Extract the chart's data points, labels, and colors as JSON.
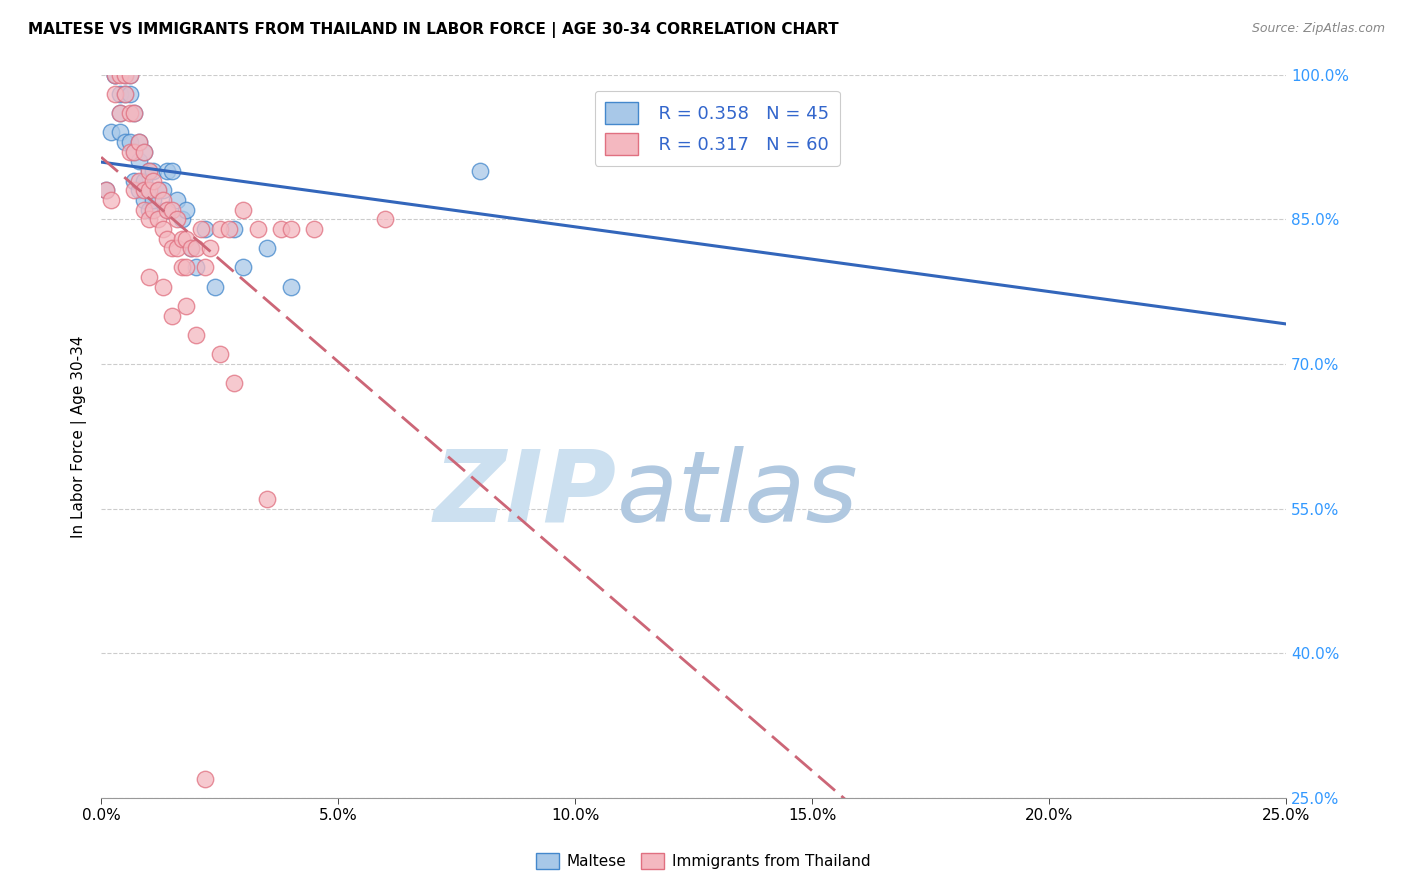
{
  "title": "MALTESE VS IMMIGRANTS FROM THAILAND IN LABOR FORCE | AGE 30-34 CORRELATION CHART",
  "source": "Source: ZipAtlas.com",
  "ylabel": "In Labor Force | Age 30-34",
  "xlim": [
    0.0,
    0.25
  ],
  "ylim": [
    0.25,
    1.0
  ],
  "xticks": [
    0.0,
    0.05,
    0.1,
    0.15,
    0.2,
    0.25
  ],
  "xtick_labels": [
    "0.0%",
    "5.0%",
    "10.0%",
    "15.0%",
    "20.0%",
    "25.0%"
  ],
  "yticks": [
    0.25,
    0.4,
    0.55,
    0.7,
    0.85,
    1.0
  ],
  "ytick_labels": [
    "25.0%",
    "40.0%",
    "55.0%",
    "70.0%",
    "85.0%",
    "100.0%"
  ],
  "blue_scatter_color": "#a8c8e8",
  "blue_edge_color": "#4488cc",
  "pink_scatter_color": "#f4b8c0",
  "pink_edge_color": "#e07080",
  "line_blue_color": "#3366bb",
  "line_pink_color": "#cc6677",
  "R_blue": 0.358,
  "N_blue": 45,
  "R_pink": 0.317,
  "N_pink": 60,
  "legend_blue": "Maltese",
  "legend_pink": "Immigrants from Thailand",
  "blue_x": [
    0.001,
    0.002,
    0.003,
    0.003,
    0.004,
    0.004,
    0.004,
    0.005,
    0.005,
    0.005,
    0.006,
    0.006,
    0.006,
    0.007,
    0.007,
    0.007,
    0.008,
    0.008,
    0.008,
    0.009,
    0.009,
    0.009,
    0.01,
    0.01,
    0.01,
    0.011,
    0.011,
    0.012,
    0.013,
    0.014,
    0.014,
    0.015,
    0.016,
    0.017,
    0.018,
    0.019,
    0.02,
    0.022,
    0.024,
    0.028,
    0.03,
    0.035,
    0.04,
    0.08,
    0.115
  ],
  "blue_y": [
    0.88,
    0.94,
    1.0,
    1.0,
    0.98,
    0.96,
    0.94,
    1.0,
    0.98,
    0.93,
    1.0,
    0.98,
    0.93,
    0.96,
    0.92,
    0.89,
    0.93,
    0.91,
    0.88,
    0.92,
    0.89,
    0.87,
    0.9,
    0.88,
    0.86,
    0.9,
    0.87,
    0.88,
    0.88,
    0.9,
    0.86,
    0.9,
    0.87,
    0.85,
    0.86,
    0.82,
    0.8,
    0.84,
    0.78,
    0.84,
    0.8,
    0.82,
    0.78,
    0.9,
    0.96
  ],
  "pink_x": [
    0.001,
    0.002,
    0.003,
    0.003,
    0.004,
    0.004,
    0.005,
    0.005,
    0.006,
    0.006,
    0.006,
    0.007,
    0.007,
    0.007,
    0.008,
    0.008,
    0.009,
    0.009,
    0.009,
    0.01,
    0.01,
    0.01,
    0.011,
    0.011,
    0.012,
    0.012,
    0.013,
    0.013,
    0.014,
    0.014,
    0.015,
    0.015,
    0.016,
    0.016,
    0.017,
    0.017,
    0.018,
    0.018,
    0.019,
    0.02,
    0.021,
    0.022,
    0.023,
    0.025,
    0.027,
    0.03,
    0.033,
    0.038,
    0.04,
    0.045,
    0.01,
    0.013,
    0.015,
    0.018,
    0.02,
    0.025,
    0.028,
    0.035,
    0.06,
    0.022
  ],
  "pink_y": [
    0.88,
    0.87,
    1.0,
    0.98,
    1.0,
    0.96,
    1.0,
    0.98,
    1.0,
    0.96,
    0.92,
    0.96,
    0.92,
    0.88,
    0.93,
    0.89,
    0.92,
    0.88,
    0.86,
    0.9,
    0.88,
    0.85,
    0.89,
    0.86,
    0.88,
    0.85,
    0.87,
    0.84,
    0.86,
    0.83,
    0.86,
    0.82,
    0.85,
    0.82,
    0.83,
    0.8,
    0.83,
    0.8,
    0.82,
    0.82,
    0.84,
    0.8,
    0.82,
    0.84,
    0.84,
    0.86,
    0.84,
    0.84,
    0.84,
    0.84,
    0.79,
    0.78,
    0.75,
    0.76,
    0.73,
    0.71,
    0.68,
    0.56,
    0.85,
    0.27
  ],
  "watermark_zip": "ZIP",
  "watermark_atlas": "atlas",
  "watermark_color_zip": "#cce0f0",
  "watermark_color_atlas": "#b0c8e0",
  "background_color": "#ffffff",
  "grid_color": "#cccccc",
  "ytick_color": "#3399ff",
  "xtick_color": "#000000"
}
